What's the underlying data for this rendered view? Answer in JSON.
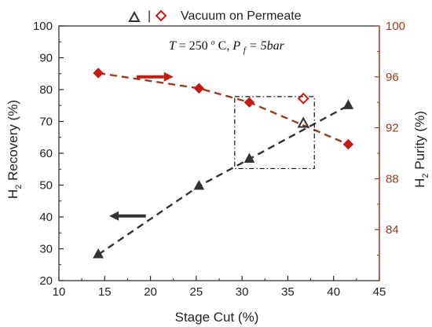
{
  "chart_data": {
    "type": "scatter",
    "xlabel": "Stage Cut (%)",
    "ylabel_left": {
      "main": "H",
      "sub": "2",
      "rest": " Recovery (%)"
    },
    "ylabel_right": {
      "main": "H",
      "sub": "2",
      "rest": " Purity (%)"
    },
    "xlim": [
      10,
      45
    ],
    "ylim_left": [
      20,
      100
    ],
    "ylim_right": [
      80,
      100
    ],
    "xticks": [
      10,
      15,
      20,
      25,
      30,
      35,
      40,
      45
    ],
    "yticks_left": [
      20,
      30,
      40,
      50,
      60,
      70,
      80,
      90,
      100
    ],
    "yticks_right": [
      84,
      88,
      92,
      96,
      100
    ],
    "legend": {
      "separator": "|",
      "label": "Vacuum on Permeate",
      "position": "top-center"
    },
    "annotation": {
      "T": "T",
      "T_value": " = 250",
      "deg": "o",
      "C": "C, ",
      "P": "P",
      "P_sub": "f",
      "P_value": " = 5bar"
    },
    "colors": {
      "recovery": "#333333",
      "purity": "#c41a0f",
      "purity_line": "#9e3a1c",
      "right_axis": "#9e3a1c"
    },
    "series": [
      {
        "axis": "left",
        "marker": "triangle",
        "color": "#333333",
        "x": [
          14.3,
          25.3,
          30.8,
          41.6
        ],
        "y": [
          28.2,
          49.7,
          58.2,
          75.0
        ]
      },
      {
        "axis": "right",
        "marker": "diamond",
        "color": "#c41a0f",
        "x": [
          14.3,
          25.3,
          30.8,
          41.6
        ],
        "y": [
          96.3,
          95.1,
          94.0,
          90.7
        ]
      }
    ],
    "outliers": [
      {
        "axis": "left",
        "marker": "triangle",
        "x": 36.7,
        "y": 69.3
      },
      {
        "axis": "right",
        "marker": "diamond",
        "x": 36.7,
        "y": 94.3
      }
    ],
    "highlight_box": {
      "x0": 29.2,
      "x1": 37.9,
      "y0": 55.2,
      "y1": 77.8,
      "axis": "left"
    },
    "arrows": [
      {
        "direction": "right",
        "color": "#c41a0f",
        "x_from": 18.5,
        "x_to": 22.5,
        "y": 84,
        "axis": "left"
      },
      {
        "direction": "left",
        "color": "#333333",
        "x_from": 19.5,
        "x_to": 15.5,
        "y": 40.3,
        "axis": "left"
      }
    ]
  }
}
